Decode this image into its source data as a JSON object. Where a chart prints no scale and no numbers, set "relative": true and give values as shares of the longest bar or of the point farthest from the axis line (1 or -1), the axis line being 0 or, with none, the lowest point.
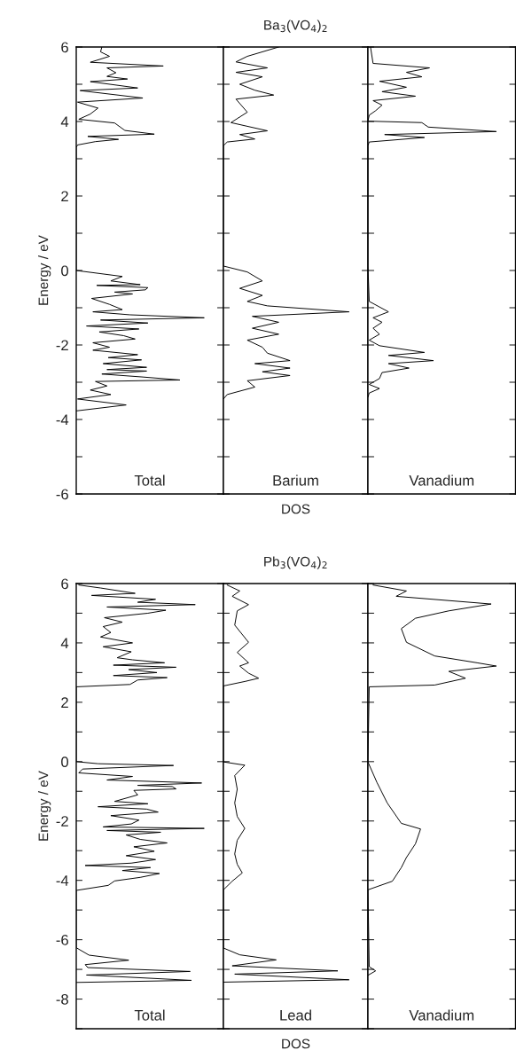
{
  "chart_data": [
    {
      "type": "line",
      "orientation": "horizontal",
      "relative": true,
      "ylabel": "Energy / eV",
      "annotations": [
        "Total"
      ],
      "tick_labels": "y",
      "ylim": [
        -6,
        6
      ],
      "yticks": [
        -6,
        {
          "value": -5,
          "label": null
        },
        -4,
        {
          "value": -3,
          "label": null
        },
        -2,
        {
          "value": -1,
          "label": null
        },
        0,
        {
          "value": 1,
          "label": null
        },
        2,
        {
          "value": 3,
          "label": null
        },
        4,
        {
          "value": 5,
          "label": null
        },
        6
      ],
      "series": [
        {
          "color": "#000000",
          "x": [
            6.0,
            5.87,
            5.75,
            5.59,
            5.49,
            5.44,
            5.31,
            5.21,
            5.14,
            5.07,
            4.9,
            4.83,
            4.63,
            4.52,
            4.36,
            4.2,
            4.06,
            3.96,
            3.76,
            3.66,
            3.6,
            3.52,
            3.46,
            3.37,
            3.3,
            0,
            -0.16,
            -0.28,
            -0.38,
            -0.4,
            -0.46,
            -0.52,
            -0.58,
            -0.63,
            -0.75,
            -0.91,
            -1.05,
            -1.11,
            -1.19,
            -1.27,
            -1.33,
            -1.41,
            -1.49,
            -1.57,
            -1.65,
            -1.75,
            -1.84,
            -1.94,
            -2.06,
            -2.14,
            -2.26,
            -2.34,
            -2.4,
            -2.5,
            -2.6,
            -2.66,
            -2.7,
            -2.78,
            -2.86,
            -2.94,
            -2.98,
            -3.1,
            -3.21,
            -3.33,
            -3.45,
            -3.61,
            -3.77
          ],
          "values": [
            0.2,
            0.19,
            0.26,
            0.11,
            0.68,
            0.24,
            0.31,
            0.24,
            0.4,
            0.11,
            0.48,
            0.03,
            0.52,
            0.01,
            0.17,
            0.11,
            0.02,
            0.3,
            0.38,
            0.61,
            0.09,
            0.33,
            0.15,
            0.01,
            0,
            0,
            0.36,
            0.27,
            0.5,
            0.16,
            0.56,
            0.54,
            0.3,
            0.44,
            0.12,
            0.26,
            0.36,
            0.13,
            0.42,
            1,
            0.19,
            0.56,
            0.08,
            0.49,
            0.18,
            0.37,
            0.46,
            0.13,
            0.26,
            0.13,
            0.48,
            0.25,
            0.51,
            0.21,
            0.55,
            0.24,
            0.55,
            0.2,
            0.52,
            0.81,
            0.15,
            0.24,
            0.11,
            0.27,
            0.01,
            0.39,
            0
          ]
        }
      ]
    },
    {
      "type": "line",
      "orientation": "horizontal",
      "relative": true,
      "title": "Ba$_{3}$(VO$_{4}$)$_{2}$",
      "xlabel": "DOS",
      "annotations": [
        "Barium"
      ],
      "tick_labels": false,
      "ylim": [
        -6,
        6
      ],
      "yticks": [
        -6,
        {
          "value": -5,
          "label": null
        },
        -4,
        {
          "value": -3,
          "label": null
        },
        -2,
        {
          "value": -1,
          "label": null
        },
        0,
        {
          "value": 1,
          "label": null
        },
        2,
        {
          "value": 3,
          "label": null
        },
        4,
        {
          "value": 5,
          "label": null
        },
        6
      ],
      "series": [
        {
          "color": "#000000",
          "x": [
            6.0,
            5.75,
            5.6,
            5.44,
            5.32,
            5.2,
            5.0,
            4.84,
            4.71,
            4.6,
            4.25,
            3.97,
            3.75,
            3.65,
            3.53,
            3.45,
            3.35,
            0.12,
            -0.04,
            -0.28,
            -0.48,
            -0.67,
            -0.83,
            -0.95,
            -1.11,
            -1.23,
            -1.39,
            -1.55,
            -1.71,
            -1.87,
            -2.06,
            -2.22,
            -2.42,
            -2.5,
            -2.62,
            -2.72,
            -2.82,
            -2.96,
            -3.13,
            -3.33,
            -3.45
          ],
          "values": [
            0.44,
            0.19,
            0.1,
            0.35,
            0.1,
            0.31,
            0.13,
            0.25,
            0.4,
            0.1,
            0.19,
            0.06,
            0.35,
            0.13,
            0.25,
            0.03,
            0,
            0,
            0.19,
            0.31,
            0.13,
            0.31,
            0.19,
            0.35,
            1,
            0.23,
            0.44,
            0.23,
            0.44,
            0.19,
            0.31,
            0.35,
            0.53,
            0.25,
            0.53,
            0.31,
            0.53,
            0.19,
            0.25,
            0.03,
            0
          ]
        }
      ]
    },
    {
      "type": "line",
      "orientation": "horizontal",
      "relative": true,
      "annotations": [
        "Vanadium"
      ],
      "tick_labels": false,
      "ylim": [
        -6,
        6
      ],
      "yticks": [
        -6,
        {
          "value": -5,
          "label": null
        },
        -4,
        {
          "value": -3,
          "label": null
        },
        -2,
        {
          "value": -1,
          "label": null
        },
        0,
        {
          "value": 1,
          "label": null
        },
        2,
        {
          "value": 3,
          "label": null
        },
        4,
        {
          "value": 5,
          "label": null
        },
        6
      ],
      "series": [
        {
          "color": "#000000",
          "x": [
            6.0,
            5.56,
            5.44,
            5.32,
            5.2,
            5.08,
            4.92,
            4.8,
            4.68,
            4.56,
            4.44,
            4.29,
            4.17,
            4.01,
            3.97,
            3.85,
            3.73,
            3.65,
            3.57,
            3.45,
            3.35,
            0.12,
            -0.83,
            -1.11,
            -1.27,
            -1.39,
            -1.55,
            -1.71,
            -1.87,
            -2.02,
            -2.2,
            -2.28,
            -2.42,
            -2.5,
            -2.62,
            -2.74,
            -2.9,
            -3.06,
            -3.17,
            -3.29,
            -3.4
          ],
          "values": [
            0.02,
            0.04,
            0.48,
            0.3,
            0.42,
            0.09,
            0.3,
            0.11,
            0.37,
            0.04,
            0.11,
            0.06,
            0.01,
            0,
            0.42,
            0.47,
            1,
            0.13,
            0.44,
            0.01,
            0,
            0,
            0.01,
            0.16,
            0.04,
            0.11,
            0.04,
            0.09,
            0.01,
            0.09,
            0.44,
            0.16,
            0.51,
            0.16,
            0.32,
            0.11,
            0.09,
            0.01,
            0.09,
            0.01,
            0
          ]
        }
      ]
    },
    {
      "type": "line",
      "orientation": "horizontal",
      "relative": true,
      "ylabel": "Energy / eV",
      "annotations": [
        "Total"
      ],
      "tick_labels": "y",
      "ylim": [
        -9,
        6
      ],
      "yticks": [
        {
          "value": -9,
          "label": null
        },
        -8,
        {
          "value": -7,
          "label": null
        },
        -6,
        {
          "value": -5,
          "label": null
        },
        -4,
        {
          "value": -3,
          "label": null
        },
        -2,
        {
          "value": -1,
          "label": null
        },
        0,
        {
          "value": 1,
          "label": null
        },
        2,
        {
          "value": 3,
          "label": null
        },
        4,
        {
          "value": 5,
          "label": null
        },
        6
      ],
      "series": [
        {
          "color": "#000000",
          "x": [
            5.95,
            5.85,
            5.67,
            5.6,
            5.47,
            5.37,
            5.29,
            5.21,
            5.1,
            5.0,
            4.85,
            4.7,
            4.55,
            4.35,
            4.2,
            4.0,
            3.87,
            3.7,
            3.5,
            3.43,
            3.33,
            3.25,
            3.18,
            3.1,
            3.0,
            2.9,
            2.83,
            2.75,
            2.6,
            2.52,
            0,
            -0.07,
            -0.13,
            -0.25,
            -0.38,
            -0.5,
            -0.62,
            -0.72,
            -0.8,
            -0.84,
            -0.92,
            -0.97,
            -1.12,
            -1.34,
            -1.42,
            -1.52,
            -1.6,
            -1.7,
            -1.82,
            -1.97,
            -2.1,
            -2.2,
            -2.25,
            -2.32,
            -2.38,
            -2.47,
            -2.62,
            -2.74,
            -2.87,
            -3.02,
            -3.17,
            -3.3,
            -3.42,
            -3.5,
            -3.57,
            -3.67,
            -3.77,
            -3.9,
            -4.02,
            -4.17,
            -4.34,
            -6.27,
            -6.52,
            -6.69,
            -6.84,
            -6.94,
            -7.07,
            -7.19,
            -7.37,
            -7.44
          ],
          "values": [
            0.02,
            0.19,
            0.46,
            0.12,
            0.62,
            0.48,
            0.93,
            0.24,
            0.7,
            0.56,
            0.22,
            0.36,
            0.21,
            0.27,
            0.19,
            0.44,
            0.21,
            0.43,
            0.32,
            0.44,
            0.69,
            0.29,
            0.78,
            0.41,
            0.63,
            0.29,
            0.71,
            0.48,
            0.42,
            0,
            0,
            0.17,
            0.76,
            0.05,
            0.02,
            0.44,
            0.24,
            0.98,
            0.48,
            0.75,
            0.78,
            0.45,
            0.48,
            0.3,
            0.56,
            0.17,
            0.55,
            0.64,
            0.27,
            0.49,
            0.43,
            0.21,
            1,
            0.24,
            0.66,
            0.39,
            0.5,
            0.71,
            0.45,
            0.61,
            0.39,
            0.62,
            0.43,
            0.07,
            0.58,
            0.36,
            0.65,
            0.5,
            0.3,
            0.25,
            0,
            0,
            0.1,
            0.41,
            0.07,
            0.09,
            0.89,
            0.08,
            0.9,
            0
          ]
        }
      ]
    },
    {
      "type": "line",
      "orientation": "horizontal",
      "relative": true,
      "title": "Pb$_{3}$(VO$_{4}$)$_{2}$",
      "xlabel": "DOS",
      "annotations": [
        "Lead"
      ],
      "tick_labels": false,
      "ylim": [
        -9,
        6
      ],
      "yticks": [
        {
          "value": -9,
          "label": null
        },
        -8,
        {
          "value": -7,
          "label": null
        },
        -6,
        {
          "value": -5,
          "label": null
        },
        -4,
        {
          "value": -3,
          "label": null
        },
        -2,
        {
          "value": -1,
          "label": null
        },
        0,
        {
          "value": 1,
          "label": null
        },
        2,
        {
          "value": 3,
          "label": null
        },
        4,
        {
          "value": 5,
          "label": null
        },
        6
      ],
      "series": [
        {
          "color": "#000000",
          "x": [
            5.95,
            5.75,
            5.57,
            5.29,
            5.08,
            4.6,
            4.02,
            3.68,
            3.33,
            3.22,
            2.98,
            2.81,
            2.7,
            2.55,
            -0.01,
            -0.12,
            -0.47,
            -0.93,
            -1.39,
            -1.85,
            -2.25,
            -2.65,
            -3.11,
            -3.46,
            -3.75,
            -4.03,
            -4.32,
            -6.28,
            -6.51,
            -6.68,
            -6.88,
            -7.05,
            -7.16,
            -7.35,
            -7.43
          ],
          "values": [
            0.03,
            0.13,
            0.07,
            0.2,
            0.11,
            0.09,
            0.2,
            0.11,
            0.2,
            0.13,
            0.2,
            0.28,
            0.17,
            0,
            0,
            0.17,
            0.09,
            0.11,
            0.09,
            0.11,
            0.17,
            0.11,
            0.09,
            0.11,
            0.15,
            0.07,
            0,
            0,
            0.13,
            0.42,
            0.07,
            0.91,
            0.09,
            1,
            0
          ]
        }
      ]
    },
    {
      "type": "line",
      "orientation": "horizontal",
      "relative": true,
      "annotations": [
        "Vanadium"
      ],
      "tick_labels": false,
      "ylim": [
        -9,
        6
      ],
      "yticks": [
        {
          "value": -9,
          "label": null
        },
        -8,
        {
          "value": -7,
          "label": null
        },
        -6,
        {
          "value": -5,
          "label": null
        },
        -4,
        {
          "value": -3,
          "label": null
        },
        -2,
        {
          "value": -1,
          "label": null
        },
        0,
        {
          "value": 1,
          "label": null
        },
        2,
        {
          "value": 3,
          "label": null
        },
        4,
        {
          "value": 5,
          "label": null
        },
        6
      ],
      "series": [
        {
          "color": "#000000",
          "x": [
            5.95,
            5.75,
            5.57,
            5.31,
            5.08,
            4.83,
            4.48,
            4.02,
            3.56,
            3.33,
            3.22,
            3.04,
            2.81,
            2.58,
            2.52,
            -0.01,
            -0.7,
            -1.39,
            -2.08,
            -2.27,
            -2.77,
            -3.23,
            -3.57,
            -4.03,
            -4.32,
            -6.91,
            -7.05,
            -7.2
          ],
          "values": [
            0.04,
            0.3,
            0.22,
            0.96,
            0.63,
            0.37,
            0.26,
            0.3,
            0.52,
            0.85,
            1,
            0.63,
            0.76,
            0.52,
            0.01,
            0,
            0.07,
            0.15,
            0.26,
            0.41,
            0.37,
            0.3,
            0.26,
            0.19,
            0,
            0.01,
            0.06,
            0
          ]
        }
      ]
    }
  ]
}
